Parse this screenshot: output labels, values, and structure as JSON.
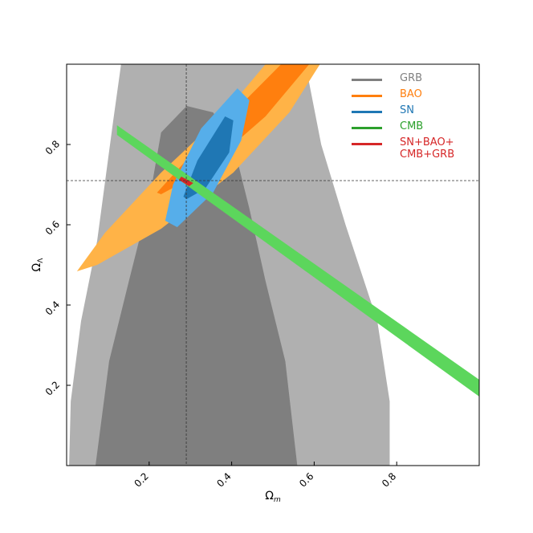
{
  "chart_data": {
    "type": "contour",
    "xlabel": {
      "symbol": "Ω",
      "subscript": "m"
    },
    "ylabel": {
      "symbol": "Ω",
      "subscript": "Λ"
    },
    "xlim": [
      0,
      1
    ],
    "ylim": [
      0,
      1
    ],
    "xticks": [
      0.2,
      0.4,
      0.6,
      0.8
    ],
    "yticks": [
      0.2,
      0.4,
      0.6,
      0.8
    ],
    "reference_lines": {
      "x": 0.29,
      "y": 0.71
    },
    "series": [
      {
        "name": "GRB",
        "color": "#808080",
        "regions": [
          {
            "color": "#b0b0b0",
            "x": [
              0.132,
              0.113,
              0.074,
              0.035,
              0.01,
              0.006,
              0.783,
              0.783,
              0.753,
              0.676,
              0.617,
              0.579
            ],
            "y": [
              1.0,
              0.86,
              0.56,
              0.36,
              0.16,
              0,
              0,
              0.16,
              0.36,
              0.6,
              0.8,
              1.0
            ]
          },
          {
            "color": "#7f7f7f",
            "x": [
              0.07,
              0.103,
              0.151,
              0.2,
              0.229,
              0.291,
              0.355,
              0.404,
              0.443,
              0.482,
              0.53,
              0.559
            ],
            "y": [
              0,
              0.26,
              0.46,
              0.66,
              0.83,
              0.896,
              0.88,
              0.8,
              0.64,
              0.46,
              0.26,
              0
            ]
          }
        ]
      },
      {
        "name": "BAO",
        "color": "#ff7f0e",
        "regions": [
          {
            "color": "#ffb347",
            "x": [
              0.025,
              0.093,
              0.229,
              0.384,
              0.482,
              0.614,
              0.54,
              0.404,
              0.229,
              0.074
            ],
            "y": [
              0.484,
              0.58,
              0.73,
              0.88,
              1.0,
              1.0,
              0.88,
              0.73,
              0.59,
              0.5
            ]
          },
          {
            "color": "#ff7f0e",
            "x": [
              0.219,
              0.307,
              0.462,
              0.52,
              0.588,
              0.482,
              0.326,
              0.229
            ],
            "y": [
              0.68,
              0.78,
              0.94,
              1.0,
              1.0,
              0.87,
              0.73,
              0.676
            ]
          }
        ]
      },
      {
        "name": "SN",
        "color": "#1f77b4",
        "regions": [
          {
            "color": "#56aeea",
            "x": [
              0.239,
              0.258,
              0.326,
              0.414,
              0.443,
              0.423,
              0.355,
              0.268
            ],
            "y": [
              0.61,
              0.7,
              0.84,
              0.94,
              0.91,
              0.81,
              0.68,
              0.594
            ]
          },
          {
            "color": "#1f77b4",
            "x": [
              0.283,
              0.317,
              0.384,
              0.404,
              0.394,
              0.336,
              0.291
            ],
            "y": [
              0.67,
              0.76,
              0.87,
              0.86,
              0.78,
              0.69,
              0.664
            ]
          }
        ]
      },
      {
        "name": "CMB",
        "color": "#2ca02c",
        "regions": [
          {
            "color": "#5cd65c",
            "x": [
              0.122,
              1.0,
              1.0,
              0.122
            ],
            "y": [
              0.848,
              0.214,
              0.172,
              0.824
            ]
          }
        ]
      },
      {
        "name": "SN+BAO+\nCMB+GRB",
        "color": "#d62728",
        "regions": [
          {
            "color": "#d62728",
            "x": [
              0.278,
              0.307,
              0.297,
              0.272
            ],
            "y": [
              0.72,
              0.704,
              0.696,
              0.712
            ]
          }
        ]
      }
    ]
  }
}
